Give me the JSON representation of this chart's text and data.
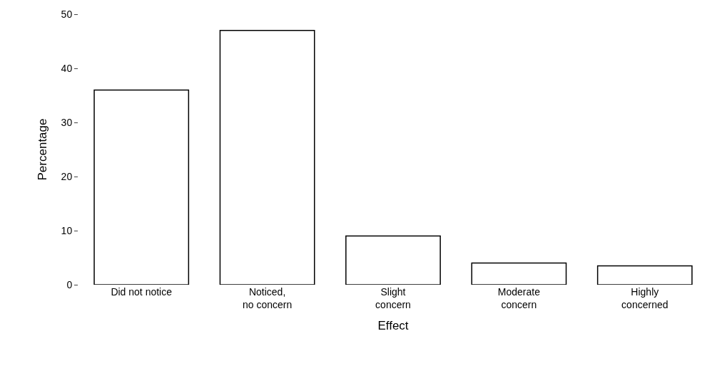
{
  "chart_data": {
    "type": "bar",
    "xlabel": "Effect",
    "ylabel": "Percentage",
    "categories": [
      "Did not notice",
      "Noticed,\nno concern",
      "Slight\nconcern",
      "Moderate\nconcern",
      "Highly\nconcerned"
    ],
    "values": [
      36,
      47,
      9,
      4,
      3.5
    ],
    "color": "#ffffff",
    "ylim": [
      0,
      50
    ],
    "yticks": [
      0,
      10,
      20,
      30,
      40,
      50
    ]
  }
}
